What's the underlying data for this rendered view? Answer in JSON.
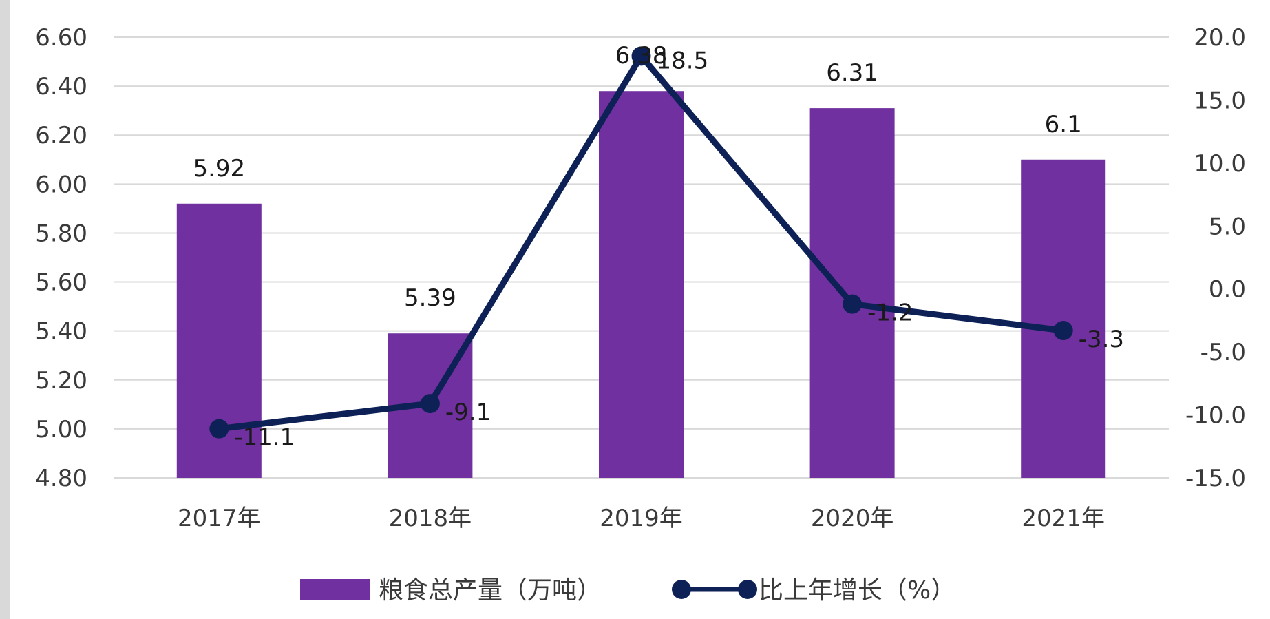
{
  "chart_data": {
    "type": "bar",
    "categories": [
      "2017年",
      "2018年",
      "2019年",
      "2020年",
      "2021年"
    ],
    "series": [
      {
        "name": "粮食总产量（万吨）",
        "type": "bar",
        "axis": "left",
        "color": "#7030a0",
        "values": [
          5.92,
          5.39,
          6.38,
          6.31,
          6.1
        ],
        "labels": [
          "5.92",
          "5.39",
          "6.38",
          "6.31",
          "6.1"
        ]
      },
      {
        "name": "比上年增长（%）",
        "type": "line",
        "axis": "right",
        "color": "#0d2156",
        "values": [
          -11.1,
          -9.1,
          18.5,
          -1.2,
          -3.3
        ],
        "labels": [
          "-11.1",
          "-9.1",
          "18.5",
          "-1.2",
          "-3.3"
        ]
      }
    ],
    "y_left": {
      "range": [
        4.8,
        6.6
      ],
      "ticks": [
        "4.80",
        "5.00",
        "5.20",
        "5.40",
        "5.60",
        "5.80",
        "6.00",
        "6.20",
        "6.40",
        "6.60"
      ]
    },
    "y_right": {
      "range": [
        -15,
        20
      ],
      "ticks": [
        "-15.0",
        "-10.0",
        "-5.0",
        "0.0",
        "5.0",
        "10.0",
        "15.0",
        "20.0"
      ]
    },
    "grid": true,
    "legend_position": "bottom"
  }
}
